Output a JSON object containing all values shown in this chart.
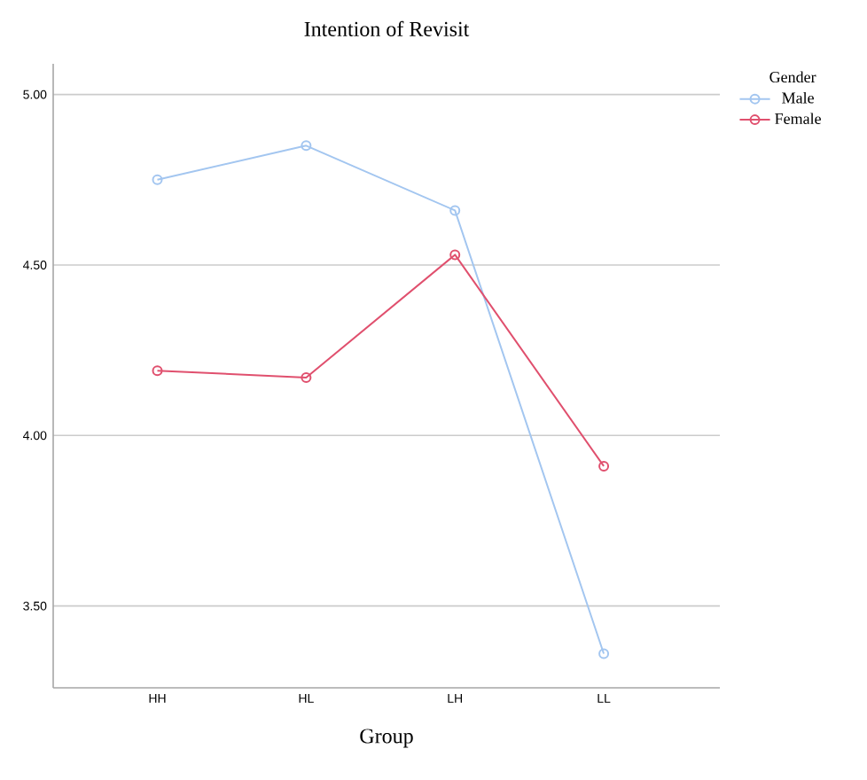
{
  "chart_data": {
    "type": "line",
    "title": "Intention of Revisit",
    "xlabel": "Group",
    "legend_title": "Gender",
    "categories": [
      "HH",
      "HL",
      "LH",
      "LL"
    ],
    "series": [
      {
        "name": "Male",
        "color": "#a3c6f0",
        "values": [
          4.75,
          4.85,
          4.66,
          3.36
        ]
      },
      {
        "name": "Female",
        "color": "#e0506e",
        "values": [
          4.19,
          4.17,
          4.53,
          3.91
        ]
      }
    ],
    "ylim": [
      3.26,
      5.09
    ],
    "yticks": [
      {
        "value": 3.5,
        "label": "3.50"
      },
      {
        "value": 4.0,
        "label": "4.00"
      },
      {
        "value": 4.5,
        "label": "4.50"
      },
      {
        "value": 5.0,
        "label": "5.00"
      }
    ],
    "grid": "y",
    "legend": "right",
    "marker": "circle",
    "line_style": "solid"
  }
}
